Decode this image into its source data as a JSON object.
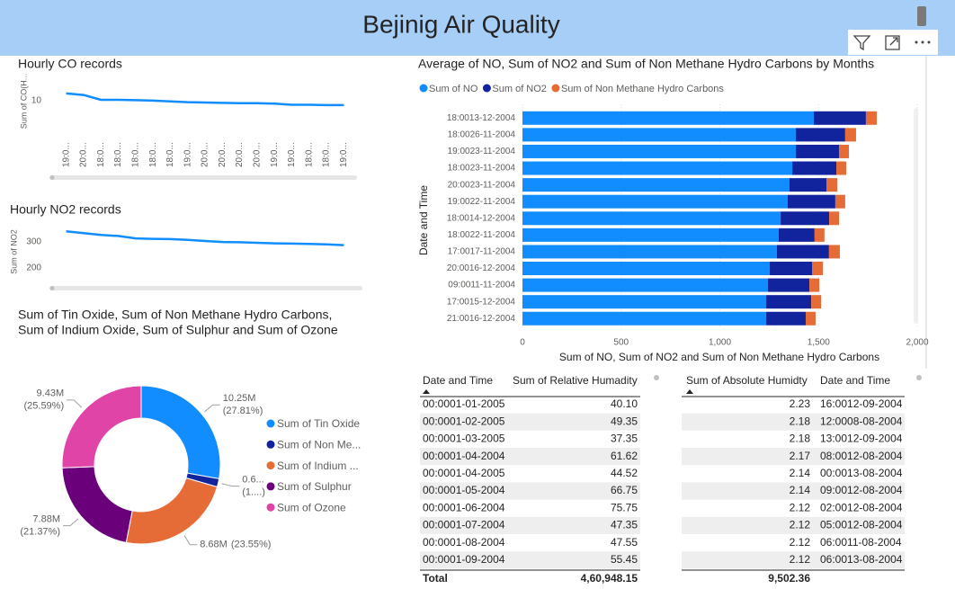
{
  "header": {
    "title": "Bejinig Air Quality"
  },
  "chart_data": [
    {
      "type": "line",
      "title": "Hourly CO records",
      "y_label": "Sum of CO(H...",
      "categories": [
        "19:0...",
        "20:0...",
        "18:0...",
        "18:0...",
        "18:0...",
        "18:0...",
        "18:0...",
        "19:0...",
        "20:0...",
        "20:0...",
        "20:0...",
        "20:0...",
        "19:0...",
        "19:0...",
        "18:0...",
        "18:0...",
        "19:0..."
      ],
      "values": [
        11.9,
        11.5,
        10.2,
        10.2,
        10.1,
        10.0,
        9.8,
        9.6,
        9.5,
        9.4,
        9.3,
        9.3,
        9.2,
        8.9,
        8.9,
        8.8,
        8.8
      ],
      "color": "#118DFF",
      "ylim": [
        4.5,
        15.2
      ],
      "yticks": [
        10
      ]
    },
    {
      "type": "line",
      "title": "Hourly NO2 records",
      "y_label": "Sum of NO2",
      "categories": [
        null,
        null,
        null,
        null,
        null,
        null,
        null,
        null,
        null,
        null,
        null,
        null,
        null,
        null,
        null,
        null,
        null
      ],
      "values": [
        340,
        333,
        326,
        322,
        313,
        311,
        310,
        307,
        303,
        299,
        298,
        296,
        294,
        293,
        292,
        290,
        287
      ],
      "color": "#118DFF",
      "ylim": [
        165,
        358
      ],
      "yticks": [
        200,
        300
      ]
    },
    {
      "type": "stacked_bar_horizontal",
      "title": "Average of NO, Sum of NO2 and Sum of Non Methane Hydro Carbons by Months",
      "y_label": "Date and Time",
      "x_label": "Sum of NO, Sum of NO2 and Sum of Non Methane Hydro Carbons",
      "categories": [
        "18:0013-12-2004",
        "18:0026-11-2004",
        "19:0023-11-2004",
        "18:0023-11-2004",
        "20:0023-11-2004",
        "19:0022-11-2004",
        "18:0014-12-2004",
        "18:0022-11-2004",
        "17:0017-11-2004",
        "20:0016-12-2004",
        "09:0011-11-2004",
        "17:0015-12-2004",
        "21:0016-12-2004"
      ],
      "series": [
        {
          "name": "Sum of NO",
          "color": "#118DFF",
          "values": [
            1476,
            1385,
            1385,
            1367,
            1353,
            1344,
            1308,
            1298,
            1289,
            1253,
            1244,
            1235,
            1235
          ]
        },
        {
          "name": "Sum of NO2",
          "color": "#12239E",
          "values": [
            264,
            250,
            219,
            223,
            187,
            241,
            246,
            182,
            264,
            214,
            210,
            228,
            200
          ]
        },
        {
          "name": "Sum of Non Methane Hydro Carbons",
          "color": "#E66C37",
          "values": [
            55,
            55,
            50,
            50,
            55,
            50,
            50,
            50,
            55,
            55,
            50,
            50,
            50
          ]
        }
      ],
      "xlim": [
        0,
        2000
      ],
      "xticks": [
        0,
        500,
        {
          "value": 1000,
          "label": "1,000"
        },
        {
          "value": 1500,
          "label": "1,500"
        },
        {
          "value": 2000,
          "label": "2,000"
        }
      ],
      "grid": true,
      "legend": "top-left"
    },
    {
      "type": "donut",
      "title": [
        "Sum of Tin Oxide, Sum of Non Methane Hydro Carbons,",
        "Sum of Indium Oxide, Sum of Sulphur and Sum of Ozone"
      ],
      "categories": [
        "Sum of Tin Oxide",
        "Sum of Non Me...",
        "Sum of Indium ...",
        "Sum of Sulphur",
        "Sum of Ozone"
      ],
      "values": [
        10.25,
        0.62,
        8.68,
        7.88,
        9.43
      ],
      "value_labels": [
        "10.25M",
        "0.6...",
        "8.68M",
        "7.88M",
        "9.43M"
      ],
      "percent_labels": [
        "(27.81%)",
        "(1....)",
        "(23.55%)",
        "(21.37%)",
        "(25.59%)"
      ],
      "colors": [
        "#118DFF",
        "#12239E",
        "#E66C37",
        "#6B007B",
        "#E044A7"
      ],
      "legend": "right"
    }
  ],
  "tables": [
    {
      "columns": [
        "Date and Time",
        "Sum of Relative Humadity"
      ],
      "rows": [
        [
          "00:0001-01-2005",
          "40.10"
        ],
        [
          "00:0001-02-2005",
          "49.35"
        ],
        [
          "00:0001-03-2005",
          "37.35"
        ],
        [
          "00:0001-04-2004",
          "61.62"
        ],
        [
          "00:0001-04-2005",
          "44.52"
        ],
        [
          "00:0001-05-2004",
          "66.75"
        ],
        [
          "00:0001-06-2004",
          "75.75"
        ],
        [
          "00:0001-07-2004",
          "47.35"
        ],
        [
          "00:0001-08-2004",
          "47.55"
        ],
        [
          "00:0001-09-2004",
          "55.45"
        ]
      ],
      "total": {
        "label": "Total",
        "value": "4,60,948.15"
      }
    },
    {
      "columns": [
        "Sum of Absolute Humidty",
        "Date and Time"
      ],
      "rows": [
        [
          "2.23",
          "16:0012-09-2004"
        ],
        [
          "2.18",
          "12:0008-08-2004"
        ],
        [
          "2.18",
          "13:0012-09-2004"
        ],
        [
          "2.17",
          "08:0012-08-2004"
        ],
        [
          "2.14",
          "00:0013-08-2004"
        ],
        [
          "2.14",
          "09:0012-08-2004"
        ],
        [
          "2.12",
          "02:0012-08-2004"
        ],
        [
          "2.12",
          "05:0012-08-2004"
        ],
        [
          "2.12",
          "06:0011-08-2004"
        ],
        [
          "2.12",
          "06:0013-08-2004"
        ]
      ],
      "total": {
        "value": "9,502.36"
      }
    }
  ]
}
